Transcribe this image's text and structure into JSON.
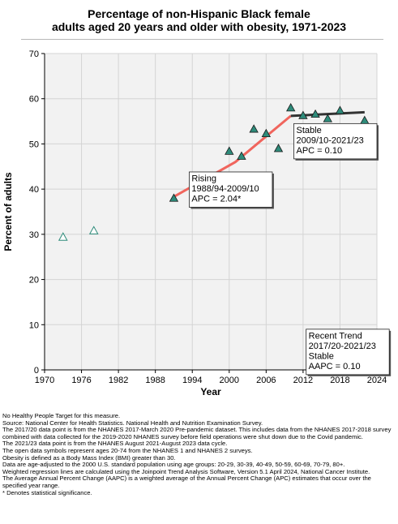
{
  "title_line1": "Percentage of non-Hispanic Black female",
  "title_line2": "adults aged 20 years and older with obesity, 1971-2023",
  "chart_data": {
    "type": "scatter",
    "xlabel": "Year",
    "ylabel": "Percent of adults",
    "xlim": [
      1970,
      2024
    ],
    "ylim": [
      0,
      70
    ],
    "x_ticks": [
      1970,
      1976,
      1982,
      1988,
      1994,
      2000,
      2006,
      2012,
      2018,
      2024
    ],
    "y_ticks": [
      0,
      10,
      20,
      30,
      40,
      50,
      60,
      70
    ],
    "grid": true,
    "open_points": [
      {
        "x": 1973,
        "y": 29.4
      },
      {
        "x": 1978,
        "y": 30.8
      }
    ],
    "filled_points": [
      {
        "x": 1991,
        "y": 38.0
      },
      {
        "x": 2000,
        "y": 48.4
      },
      {
        "x": 2002,
        "y": 47.3
      },
      {
        "x": 2004,
        "y": 53.3
      },
      {
        "x": 2006,
        "y": 52.3
      },
      {
        "x": 2008,
        "y": 49.0
      },
      {
        "x": 2010,
        "y": 58.0
      },
      {
        "x": 2012,
        "y": 56.3
      },
      {
        "x": 2014,
        "y": 56.6
      },
      {
        "x": 2016,
        "y": 55.6
      },
      {
        "x": 2018,
        "y": 57.4
      },
      {
        "x": 2022,
        "y": 55.2
      }
    ],
    "segments": [
      {
        "x": [
          1991,
          2001,
          2010
        ],
        "y": [
          38.3,
          46.0,
          56.2
        ],
        "color": "#f0655d"
      },
      {
        "x": [
          2010,
          2022
        ],
        "y": [
          56.2,
          57.0
        ],
        "color": "#333333"
      }
    ],
    "annotations": [
      {
        "lines": [
          "Rising",
          "1988/94-2009/10",
          "APC =  2.04*"
        ],
        "anchor": [
          1993.5,
          43.8
        ]
      },
      {
        "lines": [
          "Stable",
          "2009/10-2021/23",
          "APC =  0.10"
        ],
        "anchor": [
          2010.5,
          54.5
        ]
      },
      {
        "lines": [
          "Recent Trend",
          "2017/20-2021/23",
          "Stable",
          "AAPC =  0.10"
        ],
        "anchor": [
          2012.5,
          9.0
        ]
      }
    ],
    "colors": {
      "filled_marker": "#2e8b7a",
      "open_marker": "#2e8b7a",
      "rising_line": "#f0655d",
      "stable_line": "#333333",
      "plot_bg": "#f2f2f2",
      "grid": "#d4d4d4"
    }
  },
  "notes": [
    "No Healthy People Target for this measure.",
    "Source: National Center for Health Statistics. National Health and Nutrition Examination Survey.",
    "The 2017/20 data point is from the NHANES 2017-March 2020 Pre-pandemic dataset. This includes data from the NHANES 2017-2018 survey combined with data collected for the 2019-2020 NHANES survey before field operations were shut down due to the Covid pandemic.",
    "The 2021/23 data point is from the NHANES August 2021-August 2023 data cycle.",
    "The open data symbols represent ages 20-74 from the NHANES 1 and NHANES 2 surveys.",
    "Obesity is defined as a Body Mass Index (BMI) greater than 30.",
    "Data are age-adjusted to the 2000 U.S. standard population using age groups: 20-29, 30-39, 40-49, 50-59, 60-69, 70-79, 80+.",
    "Weighted regression lines are calculated using the Joinpoint Trend Analysis Software, Version 5.1 April 2024, National Cancer Institute.",
    "The Average Annual Percent Change (AAPC) is a weighted average of the Annual Percent Change (APC) estimates that occur over the specified year range.",
    "* Denotes statistical significance."
  ]
}
